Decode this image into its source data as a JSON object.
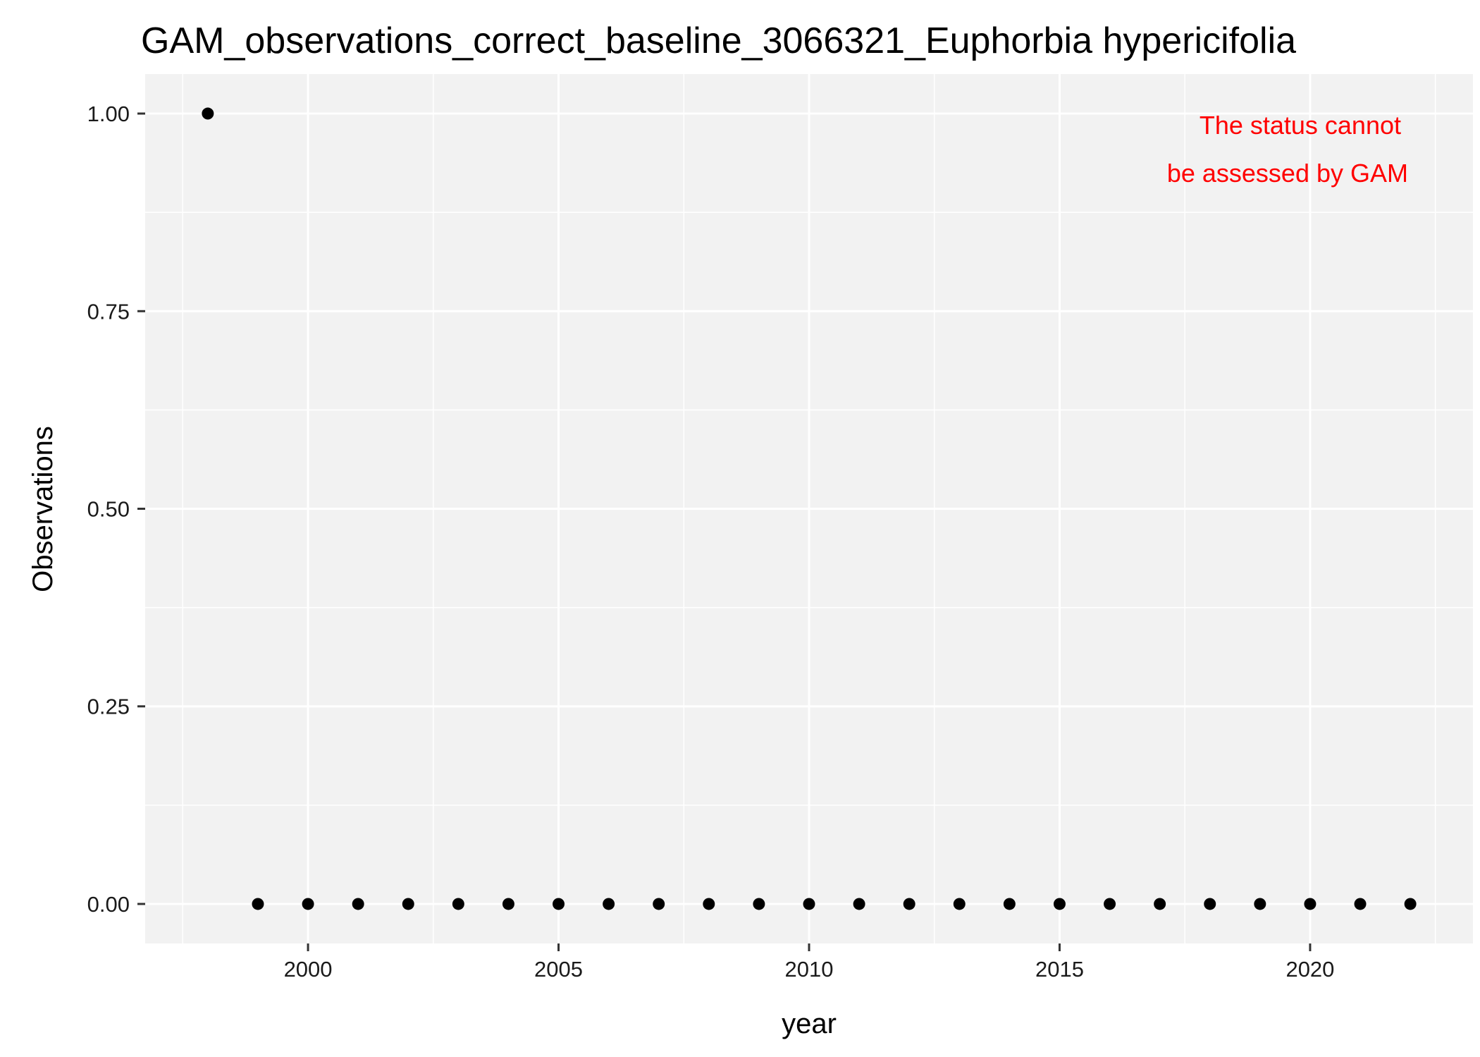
{
  "chart_data": {
    "type": "scatter",
    "title": "GAM_observations_correct_baseline_3066321_Euphorbia hypericifolia",
    "xlabel": "year",
    "ylabel": "Observations",
    "xlim": [
      1996.75,
      2023.25
    ],
    "ylim": [
      -0.05,
      1.05
    ],
    "x_ticks": [
      2000,
      2005,
      2010,
      2015,
      2020
    ],
    "x_tick_labels": [
      "2000",
      "2005",
      "2010",
      "2015",
      "2020"
    ],
    "y_ticks": [
      0,
      0.25,
      0.5,
      0.75,
      1.0
    ],
    "y_tick_labels": [
      "0.00",
      "0.25",
      "0.50",
      "0.75",
      "1.00"
    ],
    "grid": true,
    "legend": "none",
    "series": [
      {
        "x": [
          1998,
          1999,
          2000,
          2001,
          2002,
          2003,
          2004,
          2005,
          2006,
          2007,
          2008,
          2009,
          2010,
          2011,
          2012,
          2013,
          2014,
          2015,
          2016,
          2017,
          2018,
          2019,
          2020,
          2021,
          2022
        ],
        "y": [
          1,
          0,
          0,
          0,
          0,
          0,
          0,
          0,
          0,
          0,
          0,
          0,
          0,
          0,
          0,
          0,
          0,
          0,
          0,
          0,
          0,
          0,
          0,
          0,
          0
        ]
      }
    ],
    "annotation": {
      "lines": [
        "The status cannot",
        "be assessed by GAM"
      ],
      "color": "#ff0000"
    },
    "colors": {
      "panel_background": "#f2f2f2",
      "grid": "#ffffff",
      "points": "#000000"
    }
  }
}
